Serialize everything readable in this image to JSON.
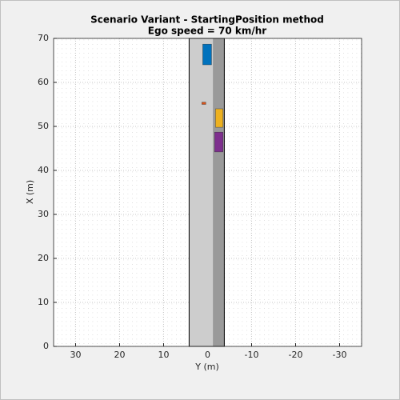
{
  "chart_data": {
    "type": "scenario",
    "title": "Scenario Variant - StartingPosition method",
    "subtitle": "Ego speed = 70 km/hr",
    "x_label": "Y (m)",
    "y_label": "X (m)",
    "xlim": [
      35,
      -35
    ],
    "xticks": [
      30,
      20,
      10,
      0,
      -10,
      -20,
      -30
    ],
    "ylim": [
      0,
      70
    ],
    "yticks": [
      0,
      10,
      20,
      30,
      40,
      50,
      60,
      70
    ],
    "grid": true,
    "road": {
      "left": 4.2,
      "right": -3.8,
      "divider": -1.2,
      "start": 0,
      "end": 70
    },
    "vehicles": [
      {
        "color": "#0072bd",
        "x": [
          64.0,
          68.7
        ],
        "y": [
          1.1,
          -0.9
        ]
      },
      {
        "color": "#d95319",
        "x": [
          55.0,
          55.5
        ],
        "y": [
          1.3,
          0.4
        ]
      },
      {
        "color": "#edb120",
        "x": [
          49.8,
          54.0
        ],
        "y": [
          -1.8,
          -3.5
        ]
      },
      {
        "color": "#7e2f8e",
        "x": [
          44.2,
          48.7
        ],
        "y": [
          -1.6,
          -3.5
        ]
      }
    ]
  }
}
